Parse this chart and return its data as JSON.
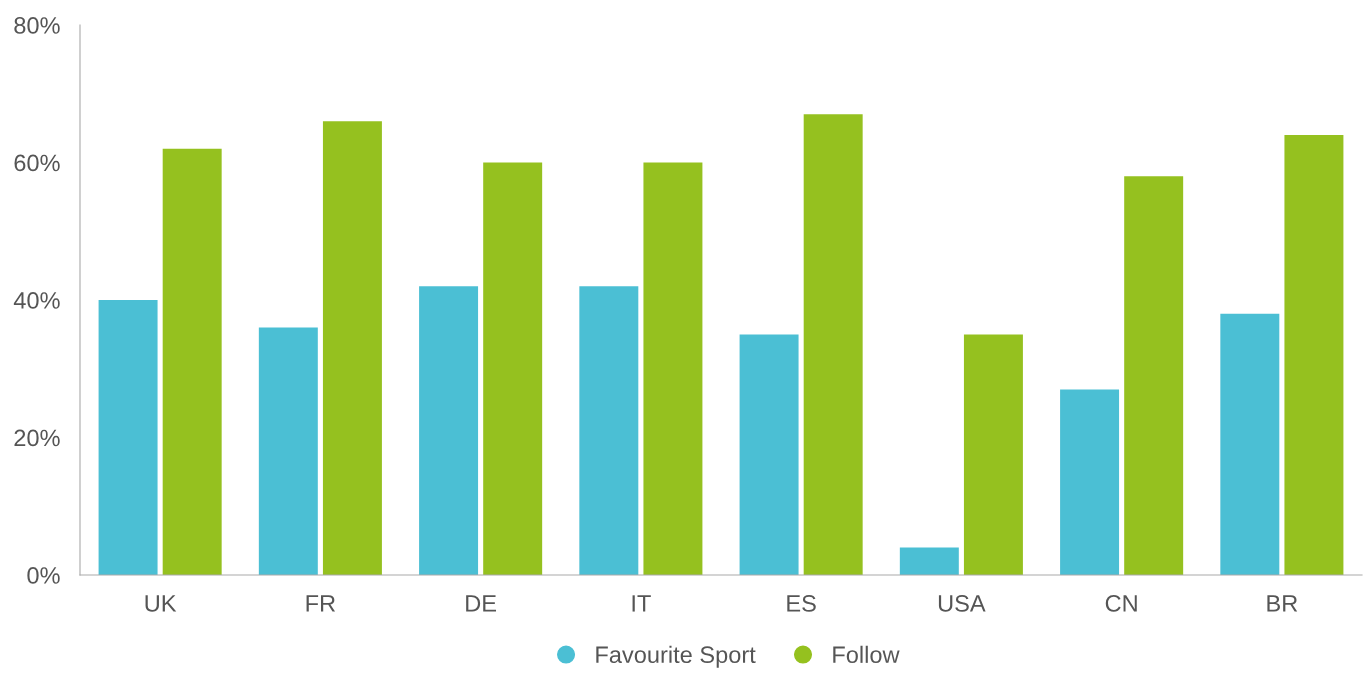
{
  "chart_data": {
    "type": "bar",
    "categories": [
      "UK",
      "FR",
      "DE",
      "IT",
      "ES",
      "USA",
      "CN",
      "BR"
    ],
    "series": [
      {
        "name": "Favourite Sport",
        "color": "#4bbfd4",
        "values": [
          40,
          36,
          42,
          42,
          35,
          4,
          27,
          38
        ]
      },
      {
        "name": "Follow",
        "color": "#95c11f",
        "values": [
          62,
          66,
          60,
          60,
          67,
          35,
          58,
          64
        ]
      }
    ],
    "ylim": [
      0,
      80
    ],
    "yticks": [
      {
        "value": 0,
        "label": "0%"
      },
      {
        "value": 20,
        "label": "20%"
      },
      {
        "value": 40,
        "label": "40%"
      },
      {
        "value": 60,
        "label": "60%"
      },
      {
        "value": 80,
        "label": "80%"
      }
    ],
    "grid": false,
    "legend": "bottom"
  }
}
